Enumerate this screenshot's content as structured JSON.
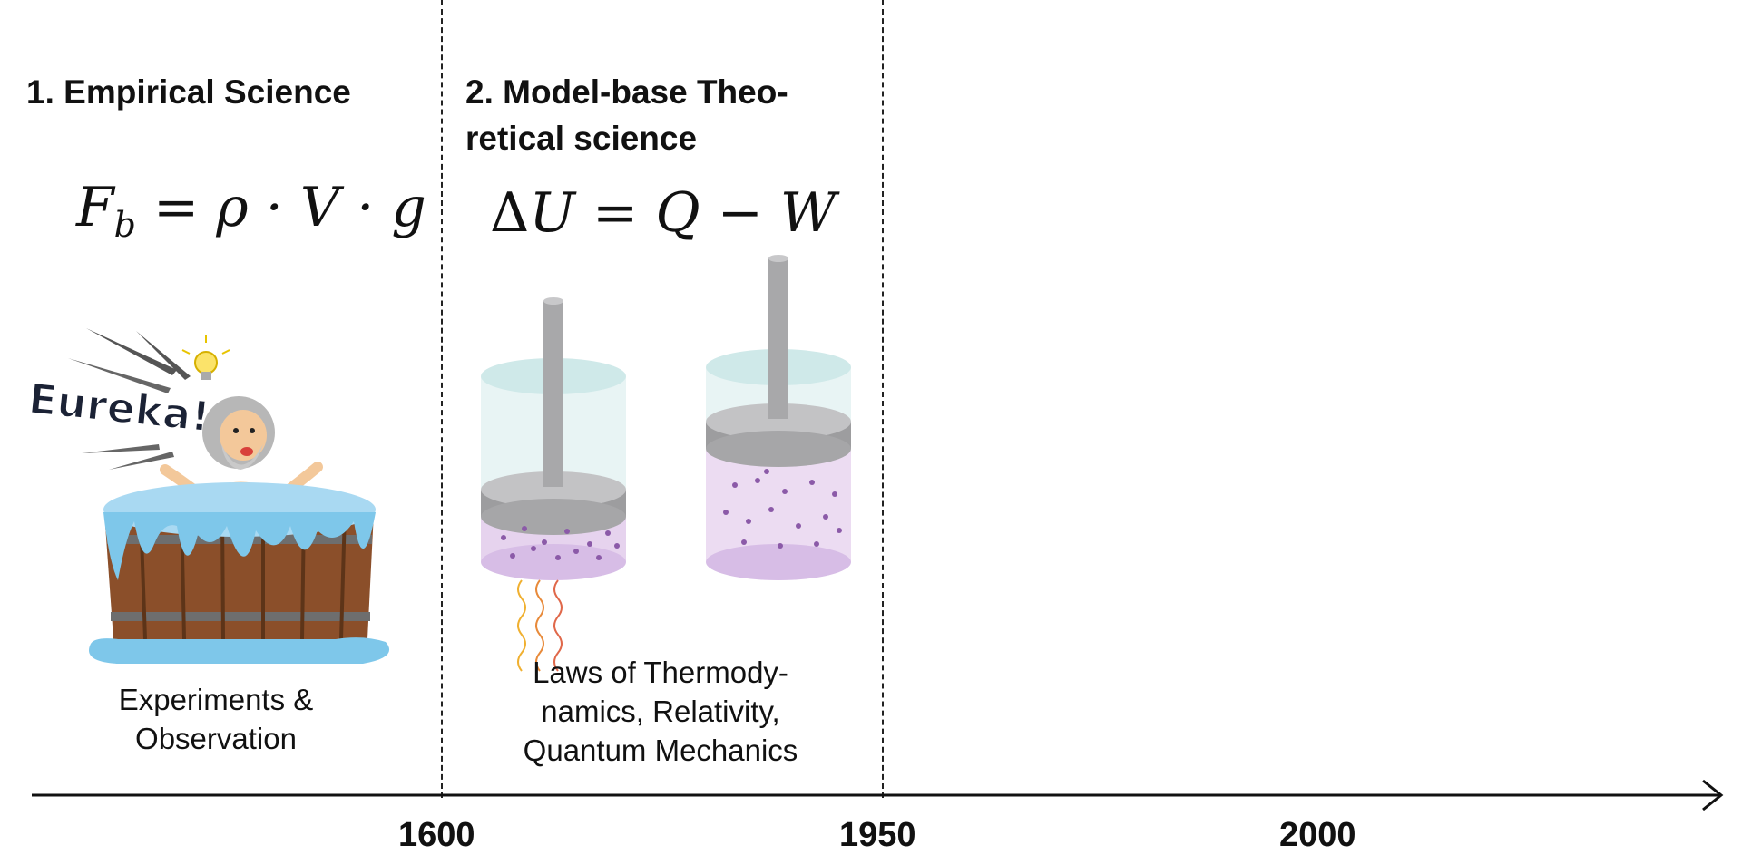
{
  "sections": [
    {
      "title": "1. Empirical Science",
      "equation": {
        "lhs": "F",
        "sub": "b",
        "rhs": "= ρ · V · g"
      },
      "badge": "Eureka!",
      "caption_lines": [
        "Experiments &",
        "Observation"
      ]
    },
    {
      "title_lines": [
        "2. Model-base Theo-",
        "retical science"
      ],
      "equation": {
        "delta": "Δ",
        "rhs": "U = Q − W"
      },
      "caption_lines": [
        "Laws of Thermody-",
        "namics, Relativity,",
        "Quantum Mechanics"
      ]
    }
  ],
  "timeline": {
    "ticks": [
      "1600",
      "1950",
      "2000"
    ]
  }
}
